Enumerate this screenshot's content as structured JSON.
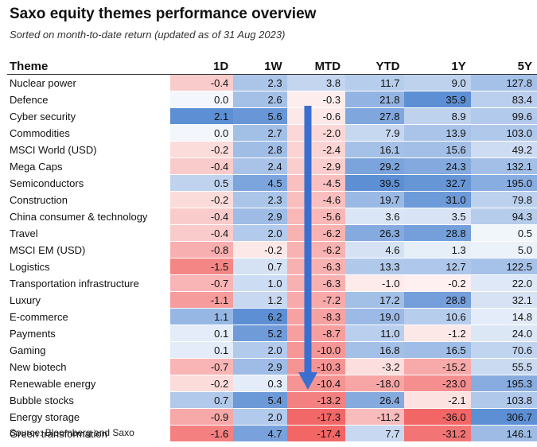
{
  "title": "Saxo equity themes performance overview",
  "subtitle": "Sorted on month-to-date return (updated as of 31 Aug 2023)",
  "source": "Source: Bloomberg and Saxo",
  "chart_data": {
    "type": "table",
    "columns": [
      "Theme",
      "1D",
      "1W",
      "MTD",
      "YTD",
      "1Y",
      "5Y"
    ],
    "rows": [
      {
        "theme": "Nuclear power",
        "values": [
          "-0.4",
          "2.3",
          "3.8",
          "11.7",
          "9.0",
          "127.8"
        ]
      },
      {
        "theme": "Defence",
        "values": [
          "0.0",
          "2.6",
          "-0.3",
          "21.8",
          "35.9",
          "83.4"
        ]
      },
      {
        "theme": "Cyber security",
        "values": [
          "2.1",
          "5.6",
          "-0.6",
          "27.8",
          "8.9",
          "99.6"
        ]
      },
      {
        "theme": "Commodities",
        "values": [
          "0.0",
          "2.7",
          "-2.0",
          "7.9",
          "13.9",
          "103.0"
        ]
      },
      {
        "theme": "MSCI World (USD)",
        "values": [
          "-0.2",
          "2.8",
          "-2.4",
          "16.1",
          "15.6",
          "49.2"
        ]
      },
      {
        "theme": "Mega Caps",
        "values": [
          "-0.4",
          "2.4",
          "-2.9",
          "29.2",
          "24.3",
          "132.1"
        ]
      },
      {
        "theme": "Semiconductors",
        "values": [
          "0.5",
          "4.5",
          "-4.5",
          "39.5",
          "32.7",
          "195.0"
        ]
      },
      {
        "theme": "Construction",
        "values": [
          "-0.2",
          "2.3",
          "-4.6",
          "19.7",
          "31.0",
          "79.8"
        ]
      },
      {
        "theme": "China consumer & technology",
        "values": [
          "-0.4",
          "2.9",
          "-5.6",
          "3.6",
          "3.5",
          "94.3"
        ]
      },
      {
        "theme": "Travel",
        "values": [
          "-0.4",
          "2.0",
          "-6.2",
          "26.3",
          "28.8",
          "0.5"
        ]
      },
      {
        "theme": "MSCI EM (USD)",
        "values": [
          "-0.8",
          "-0.2",
          "-6.2",
          "4.6",
          "1.3",
          "5.0"
        ]
      },
      {
        "theme": "Logistics",
        "values": [
          "-1.5",
          "0.7",
          "-6.3",
          "13.3",
          "12.7",
          "122.5"
        ]
      },
      {
        "theme": "Transportation infrastructure",
        "values": [
          "-0.7",
          "1.0",
          "-6.3",
          "-1.0",
          "-0.2",
          "22.0"
        ]
      },
      {
        "theme": "Luxury",
        "values": [
          "-1.1",
          "1.2",
          "-7.2",
          "17.2",
          "28.8",
          "32.1"
        ]
      },
      {
        "theme": "E-commerce",
        "values": [
          "1.1",
          "6.2",
          "-8.3",
          "19.0",
          "10.6",
          "14.8"
        ]
      },
      {
        "theme": "Payments",
        "values": [
          "0.1",
          "5.2",
          "-8.7",
          "11.0",
          "-1.2",
          "24.0"
        ]
      },
      {
        "theme": "Gaming",
        "values": [
          "0.1",
          "2.0",
          "-10.0",
          "16.8",
          "16.5",
          "70.6"
        ]
      },
      {
        "theme": "New biotech",
        "values": [
          "-0.7",
          "2.9",
          "-10.3",
          "-3.2",
          "-15.2",
          "55.5"
        ]
      },
      {
        "theme": "Renewable energy",
        "values": [
          "-0.2",
          "0.3",
          "-10.4",
          "-18.0",
          "-23.0",
          "195.3"
        ]
      },
      {
        "theme": "Bubble stocks",
        "values": [
          "0.7",
          "5.4",
          "-13.2",
          "26.4",
          "-2.1",
          "103.8"
        ]
      },
      {
        "theme": "Energy storage",
        "values": [
          "-0.9",
          "2.0",
          "-17.3",
          "-11.2",
          "-36.0",
          "306.7"
        ]
      },
      {
        "theme": "Green transformation",
        "values": [
          "-1.6",
          "4.7",
          "-17.4",
          "7.7",
          "-31.2",
          "146.1"
        ]
      }
    ],
    "separators_before_rows": [
      4,
      8,
      12,
      16,
      20
    ],
    "colors": {
      "positive": "#2f6fc8",
      "negative": "#ee3b3b",
      "arrow": "#3a6fd0"
    }
  }
}
